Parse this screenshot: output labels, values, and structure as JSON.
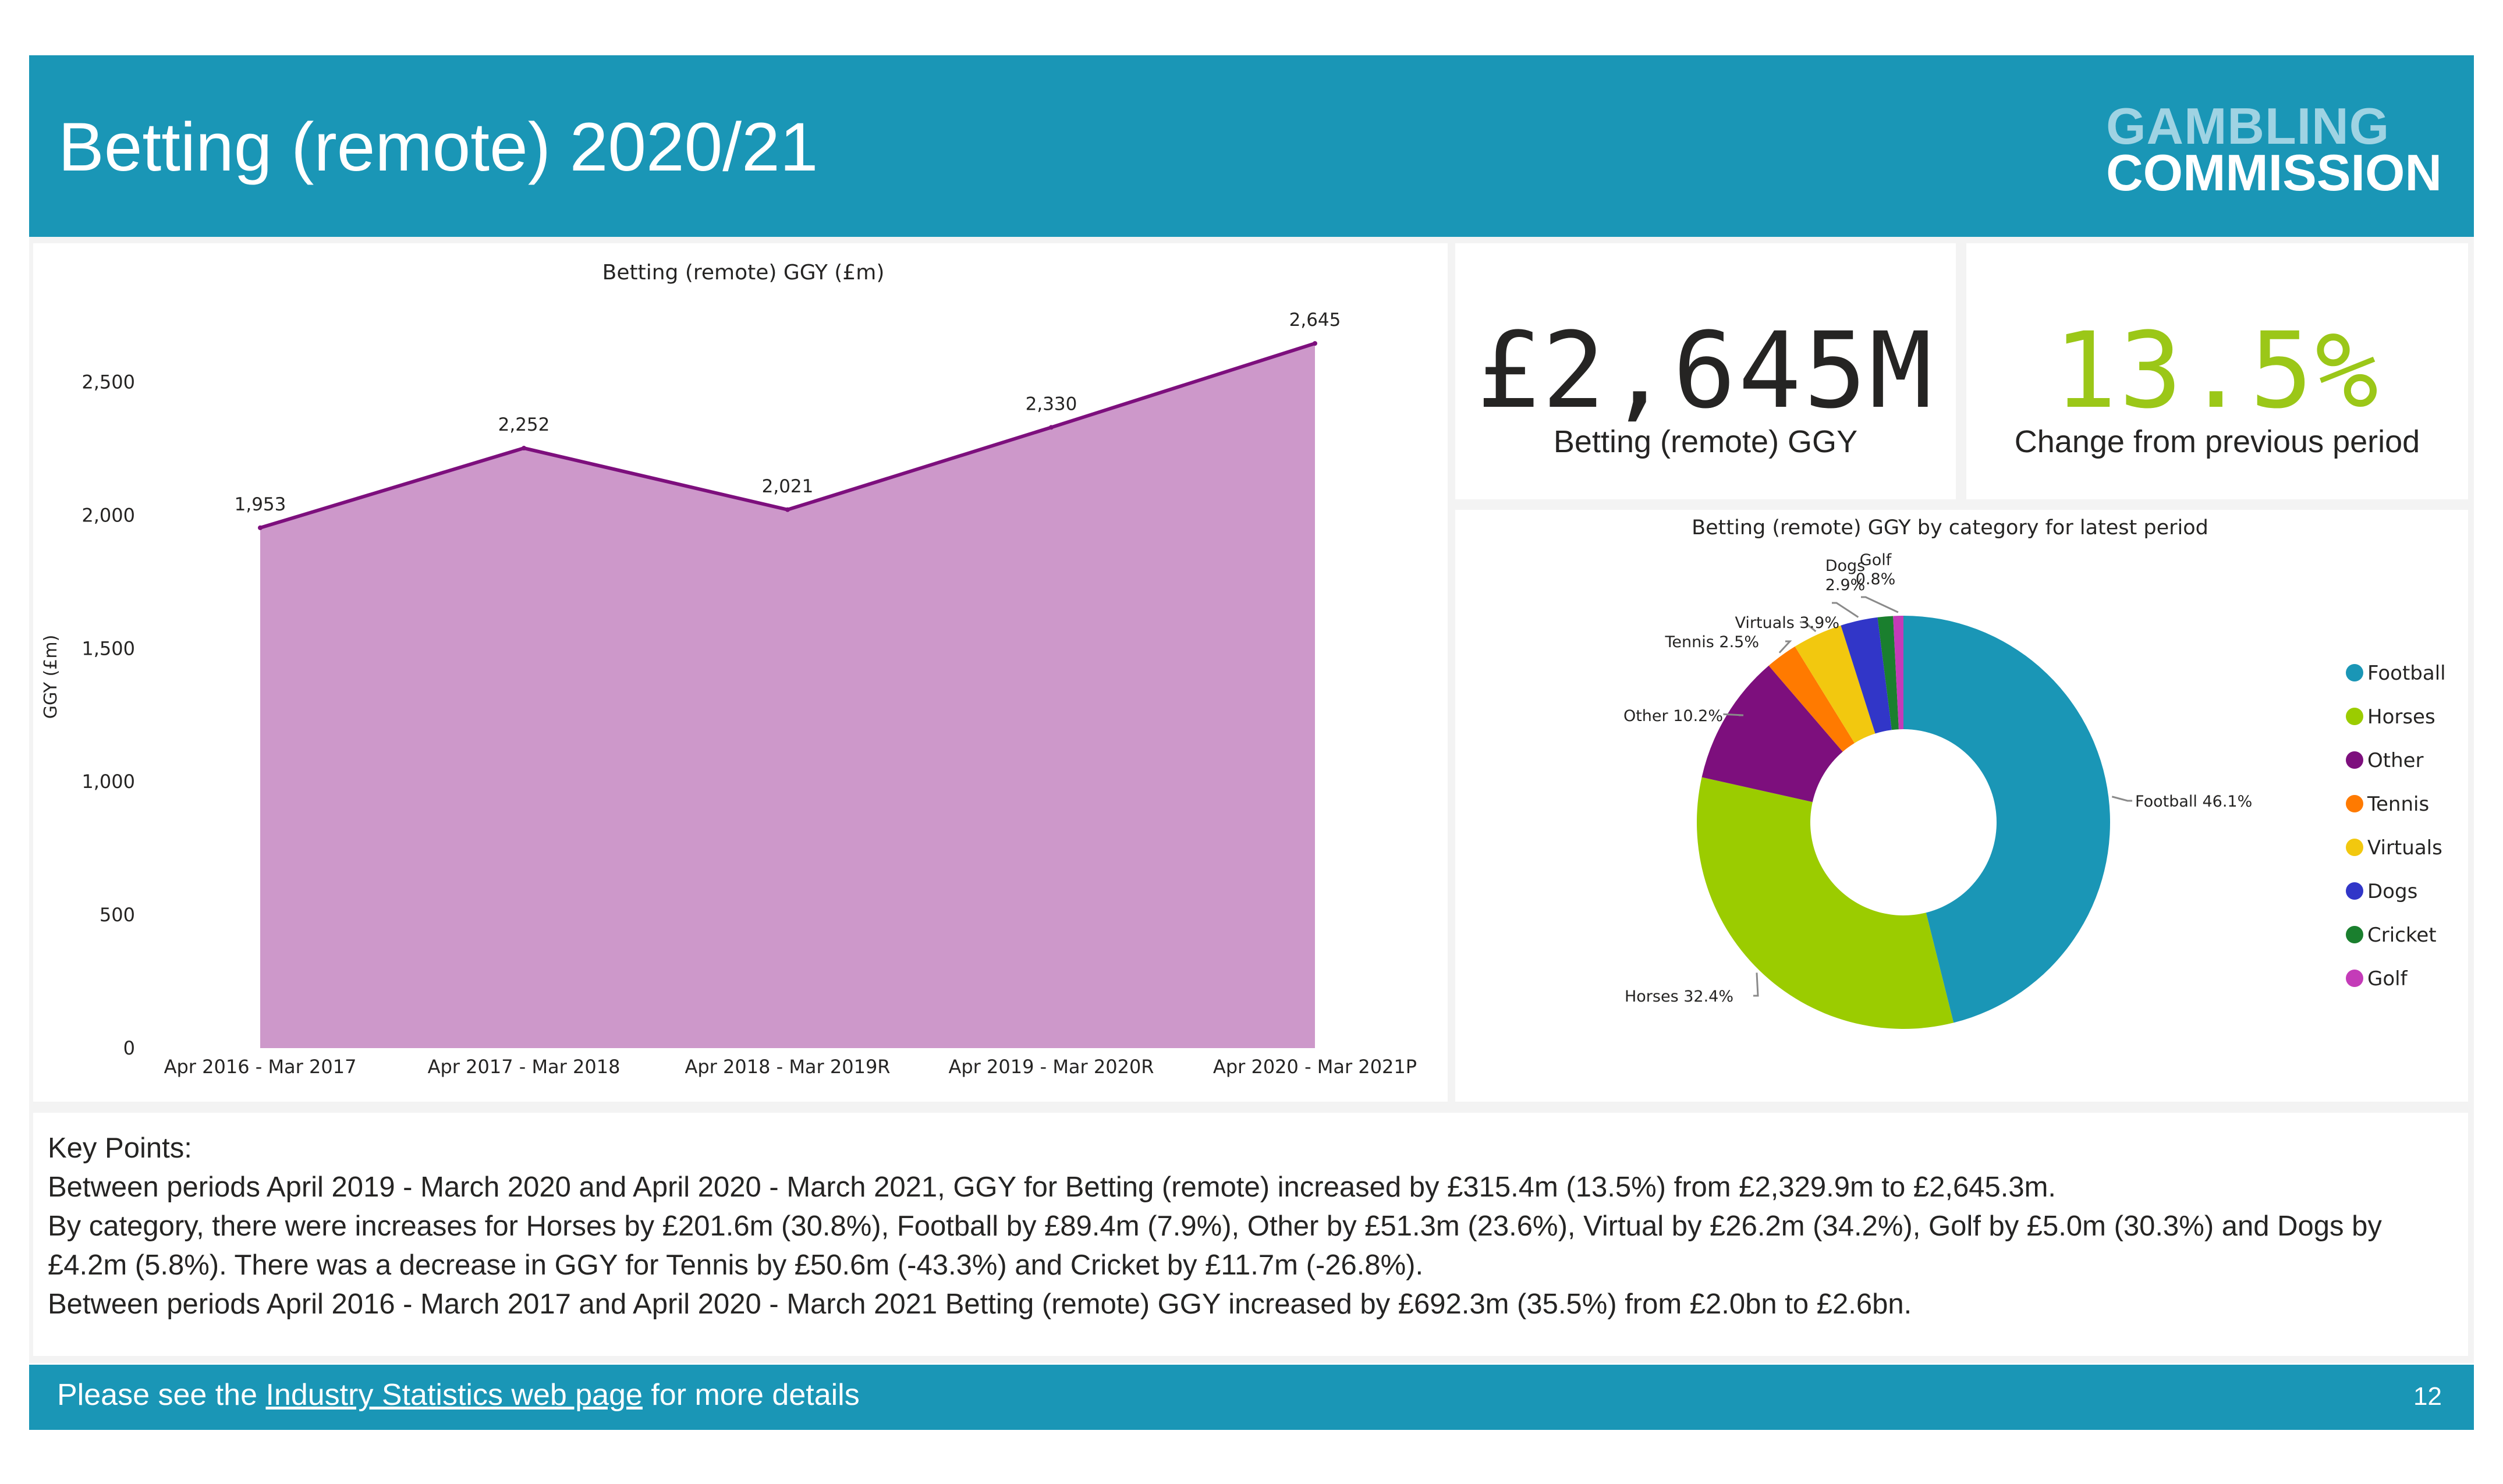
{
  "header": {
    "title": "Betting (remote) 2020/21",
    "logo_line1": "GAMBLING",
    "logo_line2": "COMMISSION"
  },
  "kpis": [
    {
      "value": "£2,645M",
      "label": "Betting (remote) GGY"
    },
    {
      "value": "13.5%",
      "label": "Change from previous period",
      "color": "#9bc718"
    }
  ],
  "chart_data": [
    {
      "type": "area",
      "title": "Betting (remote) GGY (£m)",
      "xlabel": "",
      "ylabel": "GGY (£m)",
      "categories": [
        "Apr 2016 - Mar 2017",
        "Apr 2017 - Mar 2018",
        "Apr 2018 - Mar 2019R",
        "Apr 2019 - Mar 2020R",
        "Apr 2020 - Mar 2021P"
      ],
      "values": [
        1953,
        2252,
        2021,
        2330,
        2645
      ],
      "data_labels": [
        "1,953",
        "2,252",
        "2,021",
        "2,330",
        "2,645"
      ],
      "ylim": [
        0,
        2700
      ],
      "yticks": [
        0,
        500,
        1000,
        1500,
        2000,
        2500
      ],
      "ytick_labels": [
        "0",
        "500",
        "1,000",
        "1,500",
        "2,000",
        "2,500"
      ],
      "grid": false,
      "fill_color": "#cd98ca",
      "line_color": "#7d0f7d"
    },
    {
      "type": "pie",
      "style": "donut",
      "title": "Betting (remote) GGY by category for latest period",
      "legend_placement": "right",
      "slices": [
        {
          "name": "Football",
          "value": 46.1,
          "label": "Football 46.1%",
          "color": "#1a96b6"
        },
        {
          "name": "Horses",
          "value": 32.4,
          "label": "Horses 32.4%",
          "color": "#9bcc00"
        },
        {
          "name": "Other",
          "value": 10.2,
          "label": "Other 10.2%",
          "color": "#7d0f7d"
        },
        {
          "name": "Tennis",
          "value": 2.5,
          "label": "Tennis 2.5%",
          "color": "#ff7a00"
        },
        {
          "name": "Virtuals",
          "value": 3.9,
          "label": "Virtuals 3.9%",
          "color": "#f2c80f"
        },
        {
          "name": "Dogs",
          "value": 2.9,
          "label_line1": "Dogs",
          "label_line2": "2.9%",
          "color": "#3136c8"
        },
        {
          "name": "Cricket",
          "value": 1.2,
          "color": "#1a7f2e"
        },
        {
          "name": "Golf",
          "value": 0.8,
          "label_line1": "Golf",
          "label_line2": "0.8%",
          "color": "#c43bb8"
        }
      ]
    }
  ],
  "key_points": {
    "heading": "Key Points:",
    "lines": [
      "Between periods April 2019 - March 2020 and April 2020 - March 2021, GGY for Betting (remote) increased by £315.4m (13.5%) from £2,329.9m to £2,645.3m.",
      "By category, there were increases for Horses by £201.6m (30.8%), Football by £89.4m (7.9%), Other by £51.3m (23.6%), Virtual by £26.2m (34.2%), Golf by £5.0m (30.3%) and Dogs by £4.2m (5.8%). There was a decrease in GGY for Tennis by £50.6m (-43.3%) and Cricket by £11.7m (-26.8%).",
      "Between periods April 2016 - March 2017 and April 2020 - March 2021 Betting (remote) GGY increased by £692.3m (35.5%) from £2.0bn to £2.6bn."
    ]
  },
  "footer": {
    "prefix": "Please see the ",
    "link_text": "Industry Statistics web page",
    "suffix": " for more details",
    "page_number": "12"
  }
}
